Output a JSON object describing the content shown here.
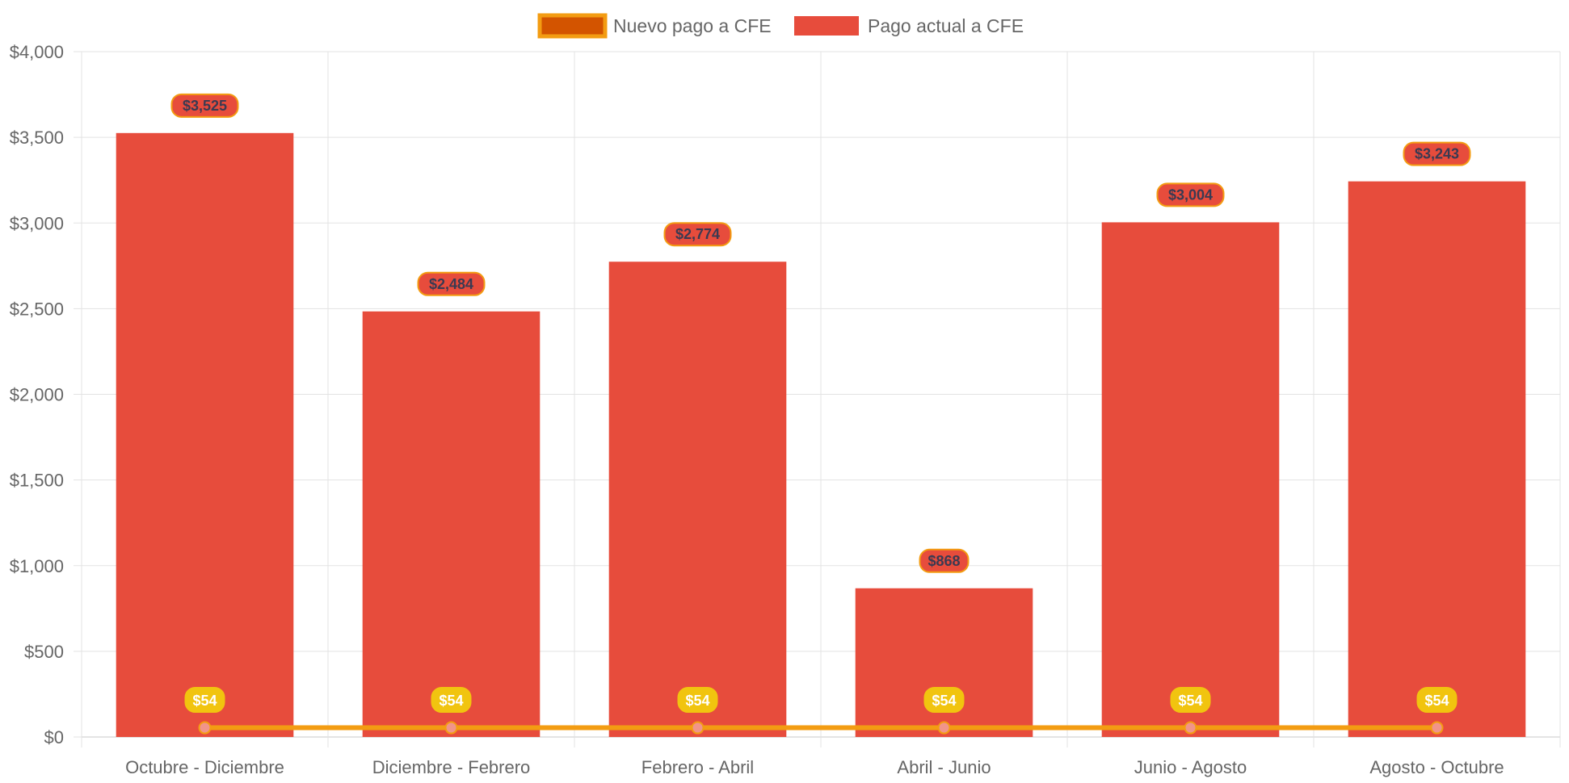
{
  "chart_data": {
    "type": "bar",
    "title": "",
    "xlabel": "",
    "ylabel": "",
    "ylim": [
      0,
      4000
    ],
    "y_ticks": [
      0,
      500,
      1000,
      1500,
      2000,
      2500,
      3000,
      3500,
      4000
    ],
    "y_tick_labels": [
      "$0",
      "$500",
      "$1,000",
      "$1,500",
      "$2,000",
      "$2,500",
      "$3,000",
      "$3,500",
      "$4,000"
    ],
    "categories": [
      "Octubre - Diciembre",
      "Diciembre - Febrero",
      "Febrero - Abril",
      "Abril - Junio",
      "Junio - Agosto",
      "Agosto - Octubre"
    ],
    "grid": true,
    "legend_position": "top-center",
    "series": [
      {
        "name": "Nuevo pago a CFE",
        "type": "line",
        "values": [
          54,
          54,
          54,
          54,
          54,
          54
        ],
        "data_labels": [
          "$54",
          "$54",
          "$54",
          "$54",
          "$54",
          "$54"
        ],
        "color": "#f39c12",
        "legend_fill": "#d35400",
        "label_fill": "#f1c40f",
        "point_fill": "#f1948a"
      },
      {
        "name": "Pago actual a CFE",
        "type": "bar",
        "values": [
          3525,
          2484,
          2774,
          868,
          3004,
          3243
        ],
        "data_labels": [
          "$3,525",
          "$2,484",
          "$2,774",
          "$868",
          "$3,004",
          "$3,243"
        ],
        "color": "#e74c3c",
        "label_border": "#f39c12"
      }
    ]
  }
}
